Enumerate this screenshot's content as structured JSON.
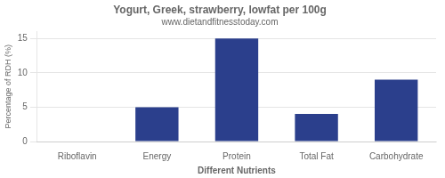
{
  "chart_data": {
    "type": "bar",
    "title": "Yogurt, Greek, strawberry, lowfat per 100g",
    "subtitle": "www.dietandfitnesstoday.com",
    "xlabel": "Different Nutrients",
    "ylabel": "Percentage of RDH (%)",
    "categories": [
      "Riboflavin",
      "Energy",
      "Protein",
      "Total Fat",
      "Carbohydrate"
    ],
    "values": [
      0,
      5,
      15,
      4,
      9
    ],
    "color": "#2b3f8c",
    "ylim": [
      0,
      16
    ],
    "yticks": [
      0,
      5,
      10,
      15
    ],
    "grid": true
  }
}
